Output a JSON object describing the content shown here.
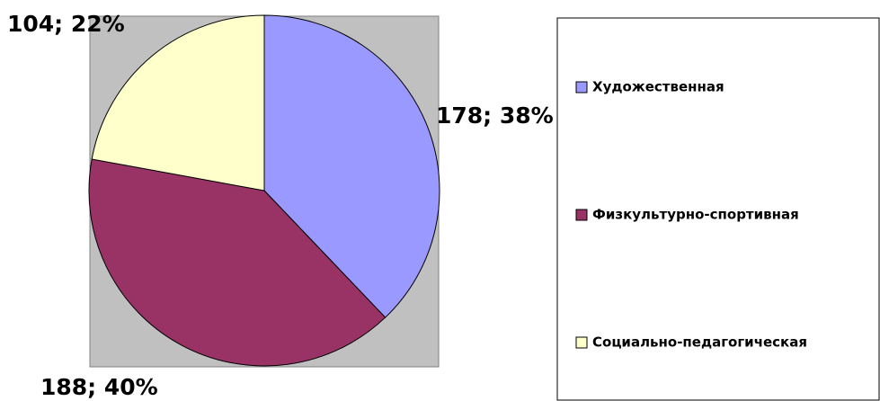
{
  "chart_data": {
    "type": "pie",
    "categories": [
      "Художественная",
      "Физкультурно-спортивная",
      "Социально-педагогическая"
    ],
    "values": [
      178,
      188,
      104
    ],
    "value_labels": [
      "178; 38%",
      "188; 40%",
      "104; 22%"
    ],
    "colors": [
      "#9999ff",
      "#993366",
      "#ffffcc"
    ],
    "legend": "right"
  }
}
